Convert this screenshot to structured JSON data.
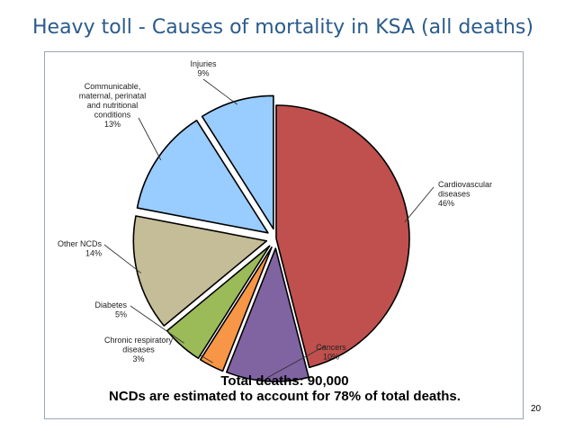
{
  "slide": {
    "title": "Heavy toll - Causes of mortality in KSA (all deaths)",
    "page_number": "20"
  },
  "chart_data": {
    "type": "pie",
    "title": "",
    "slices": [
      {
        "name": "Cardiovascular diseases",
        "label_lines": [
          "Cardiovascular",
          "diseases"
        ],
        "value": 46,
        "value_label": "46%",
        "color": "#c0504d",
        "exploded": false
      },
      {
        "name": "Cancers",
        "label_lines": [
          "Cancers"
        ],
        "value": 10,
        "value_label": "10%",
        "color": "#8064a2",
        "exploded": true
      },
      {
        "name": "Chronic respiratory diseases",
        "label_lines": [
          "Chronic respiratory",
          "diseases"
        ],
        "value": 3,
        "value_label": "3%",
        "color": "#f79646",
        "exploded": true
      },
      {
        "name": "Diabetes",
        "label_lines": [
          "Diabetes"
        ],
        "value": 5,
        "value_label": "5%",
        "color": "#9bbb59",
        "exploded": true
      },
      {
        "name": "Other NCDs",
        "label_lines": [
          "Other NCDs"
        ],
        "value": 14,
        "value_label": "14%",
        "color": "#c4bd97",
        "exploded": true
      },
      {
        "name": "Communicable, maternal, perinatal and nutritional conditions",
        "label_lines": [
          "Communicable,",
          "maternal, perinatal",
          "and nutritional",
          "conditions"
        ],
        "value": 13,
        "value_label": "13%",
        "color": "#99ccff",
        "exploded": true
      },
      {
        "name": "Injuries",
        "label_lines": [
          "Injuries"
        ],
        "value": 9,
        "value_label": "9%",
        "color": "#99ccff",
        "exploded": true
      }
    ],
    "annotations": {
      "total": "Total deaths: 90,000",
      "ncd_share": "NCDs are estimated to account for 78% of total deaths."
    }
  }
}
